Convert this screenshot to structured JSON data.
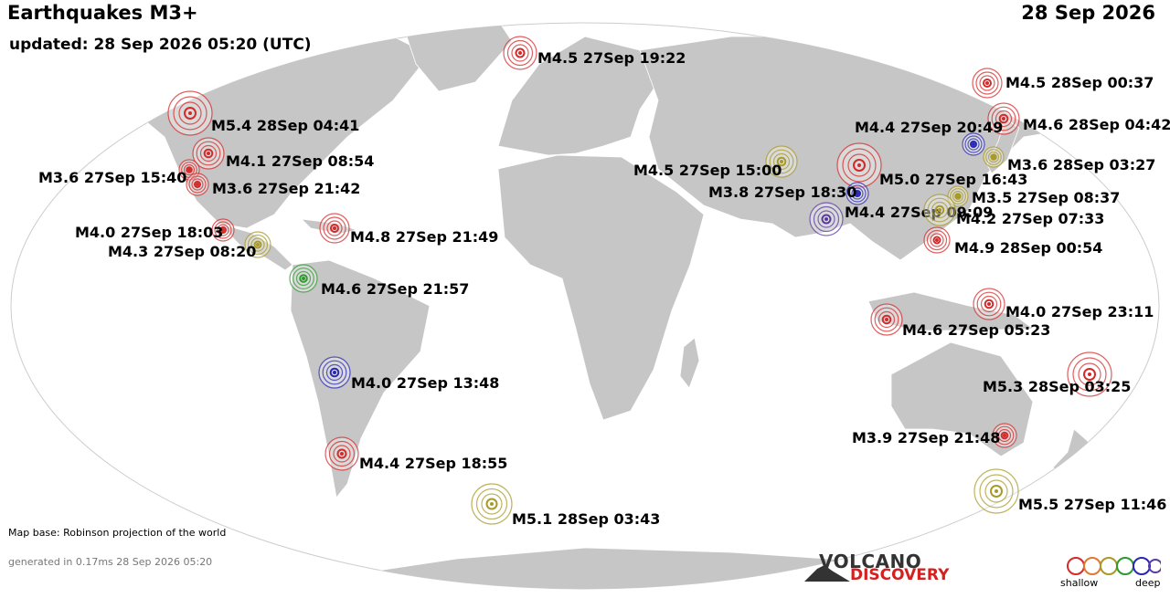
{
  "header": {
    "title": "Earthquakes M3+",
    "updated": "updated: 28 Sep 2026 05:20 (UTC)",
    "date": "28 Sep 2026"
  },
  "footer": {
    "map_base": "Map base: Robinson projection of the world",
    "generated": "generated in 0.17ms 28 Sep 2026 05:20",
    "logo_line1": "VOLCANO",
    "logo_line2": "DISCOVERY",
    "legend_shallow": "shallow",
    "legend_deep": "deep"
  },
  "colors": {
    "ocean": "#ffffff",
    "land": "#c8c8c8",
    "shallow": "#d42a2a",
    "mid_shallow": "#e07a30",
    "intermediate": "#a89a28",
    "mid_deep": "#2e9a2e",
    "deep": "#2828b4",
    "very_deep": "#5a3aa0"
  },
  "earthquakes": [
    {
      "label": "M4.5 27Sep 19:22",
      "depth": "shallow"
    },
    {
      "label": "M5.4 28Sep 04:41",
      "depth": "shallow"
    },
    {
      "label": "M4.1 27Sep 08:54",
      "depth": "shallow"
    },
    {
      "label": "M3.6 27Sep 15:40",
      "depth": "shallow"
    },
    {
      "label": "M3.6 27Sep 21:42",
      "depth": "shallow"
    },
    {
      "label": "M4.0 27Sep 18:03",
      "depth": "shallow"
    },
    {
      "label": "M4.3 27Sep 08:20",
      "depth": "intermediate"
    },
    {
      "label": "M4.8 27Sep 21:49",
      "depth": "shallow"
    },
    {
      "label": "M4.6 27Sep 21:57",
      "depth": "mid_deep"
    },
    {
      "label": "M4.0 27Sep 13:48",
      "depth": "deep"
    },
    {
      "label": "M4.4 27Sep 18:55",
      "depth": "shallow"
    },
    {
      "label": "M5.1 28Sep 03:43",
      "depth": "intermediate"
    },
    {
      "label": "M4.5 27Sep 15:00",
      "depth": "intermediate"
    },
    {
      "label": "M5.0 27Sep 16:43",
      "depth": "shallow"
    },
    {
      "label": "M3.8 27Sep 18:30",
      "depth": "deep"
    },
    {
      "label": "M4.4 27Sep 09:09",
      "depth": "very_deep"
    },
    {
      "label": "M3.5 27Sep 08:37",
      "depth": "intermediate"
    },
    {
      "label": "M4.2 27Sep 07:33",
      "depth": "intermediate"
    },
    {
      "label": "M4.9 28Sep 00:54",
      "depth": "shallow"
    },
    {
      "label": "M4.5 28Sep 00:37",
      "depth": "shallow"
    },
    {
      "label": "M4.6 28Sep 04:42",
      "depth": "shallow"
    },
    {
      "label": "M4.4 27Sep 20:49",
      "depth": "deep"
    },
    {
      "label": "M3.6 28Sep 03:27",
      "depth": "intermediate"
    },
    {
      "label": "M4.0 27Sep 23:11",
      "depth": "shallow"
    },
    {
      "label": "M4.6 27Sep 05:23",
      "depth": "shallow"
    },
    {
      "label": "M5.3 28Sep 03:25",
      "depth": "shallow"
    },
    {
      "label": "M3.9 27Sep 21:48",
      "depth": "shallow"
    },
    {
      "label": "M5.5 27Sep 11:46",
      "depth": "intermediate"
    }
  ]
}
